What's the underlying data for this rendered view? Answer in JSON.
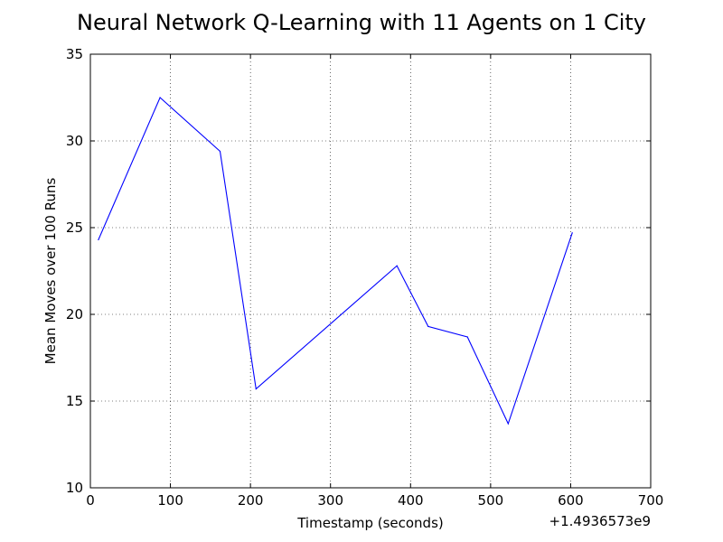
{
  "chart_data": {
    "type": "line",
    "title": "Neural Network Q-Learning with 11 Agents on 1 City",
    "xlabel": "Timestamp (seconds)",
    "ylabel": "Mean Moves over 100 Runs",
    "x_offset_label": "+1.4936573e9",
    "xlim": [
      0,
      700
    ],
    "ylim": [
      10,
      35
    ],
    "xticks": [
      0,
      100,
      200,
      300,
      400,
      500,
      600,
      700
    ],
    "yticks": [
      10,
      15,
      20,
      25,
      30,
      35
    ],
    "grid": true,
    "legend": "none",
    "series": [
      {
        "color": "#0000ff",
        "x": [
          10,
          87,
          162,
          207,
          383,
          422,
          471,
          522,
          602
        ],
        "y": [
          24.3,
          32.5,
          29.4,
          15.7,
          22.8,
          19.3,
          18.7,
          13.7,
          24.7
        ]
      }
    ]
  }
}
